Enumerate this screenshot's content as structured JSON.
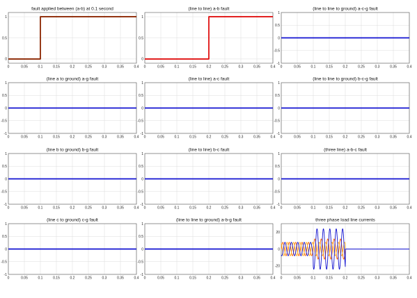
{
  "chart_data": [
    {
      "type": "line",
      "title": "fault applied between (a-b)  at 0.1 second",
      "xlim": [
        0,
        0.4
      ],
      "ylim": [
        -0.1,
        1.1
      ],
      "xticks": [
        "0",
        "0.05",
        "0.1",
        "0.15",
        "0.2",
        "0.25",
        "0.3",
        "0.35",
        "0.4"
      ],
      "yticks": [
        "0",
        "0.5",
        "1"
      ],
      "grid": true,
      "series": [
        {
          "color": "#8B2500",
          "x": [
            0,
            0.1,
            0.1,
            0.4
          ],
          "y": [
            0,
            0,
            1,
            1
          ]
        }
      ]
    },
    {
      "type": "line",
      "title": "(line to line) a-b fault",
      "xlim": [
        0,
        0.4
      ],
      "ylim": [
        -0.1,
        1.1
      ],
      "xticks": [
        "0",
        "0.05",
        "0.1",
        "0.15",
        "0.2",
        "0.25",
        "0.3",
        "0.35",
        "0.4"
      ],
      "yticks": [
        "0",
        "0.5",
        "1"
      ],
      "grid": true,
      "series": [
        {
          "color": "#e01010",
          "x": [
            0,
            0.2,
            0.2,
            0.4
          ],
          "y": [
            0,
            0,
            1,
            1
          ]
        }
      ]
    },
    {
      "type": "line",
      "title": "(line to line to ground) a-c-g fault",
      "xlim": [
        0,
        0.4
      ],
      "ylim": [
        -1,
        1
      ],
      "xticks": [
        "0",
        "0.05",
        "0.1",
        "0.15",
        "0.2",
        "0.25",
        "0.3",
        "0.35",
        "0.4"
      ],
      "yticks": [
        "-1",
        "-0.5",
        "0",
        "0.5",
        "1"
      ],
      "grid": true,
      "series": [
        {
          "color": "#1010d0",
          "x": [
            0,
            0.4
          ],
          "y": [
            0,
            0
          ]
        }
      ]
    },
    {
      "type": "line",
      "title": "(line a to ground) a-g fault",
      "xlim": [
        0,
        0.4
      ],
      "ylim": [
        -1,
        1
      ],
      "xticks": [
        "0",
        "0.05",
        "0.1",
        "0.15",
        "0.2",
        "0.25",
        "0.3",
        "0.35",
        "0.4"
      ],
      "yticks": [
        "-1",
        "-0.5",
        "0",
        "0.5",
        "1"
      ],
      "grid": true,
      "series": [
        {
          "color": "#1010d0",
          "x": [
            0,
            0.4
          ],
          "y": [
            0,
            0
          ]
        }
      ]
    },
    {
      "type": "line",
      "title": "(line to line) a-c  fault",
      "xlim": [
        0,
        0.4
      ],
      "ylim": [
        -1,
        1
      ],
      "xticks": [
        "0",
        "0.05",
        "0.1",
        "0.15",
        "0.2",
        "0.25",
        "0.3",
        "0.35",
        "0.4"
      ],
      "yticks": [
        "-1",
        "-0.5",
        "0",
        "0.5",
        "1"
      ],
      "grid": true,
      "series": [
        {
          "color": "#1010d0",
          "x": [
            0,
            0.4
          ],
          "y": [
            0,
            0
          ]
        }
      ]
    },
    {
      "type": "line",
      "title": "(line to line to ground) b-c-g fault",
      "xlim": [
        0,
        0.4
      ],
      "ylim": [
        -1,
        1
      ],
      "xticks": [
        "0",
        "0.05",
        "0.1",
        "0.15",
        "0.2",
        "0.25",
        "0.3",
        "0.35",
        "0.4"
      ],
      "yticks": [
        "-1",
        "-0.5",
        "0",
        "0.5",
        "1"
      ],
      "grid": true,
      "series": [
        {
          "color": "#1010d0",
          "x": [
            0,
            0.4
          ],
          "y": [
            0,
            0
          ]
        }
      ]
    },
    {
      "type": "line",
      "title": "(line b to ground) b-g fault",
      "xlim": [
        0,
        0.4
      ],
      "ylim": [
        -1,
        1
      ],
      "xticks": [
        "0",
        "0.05",
        "0.1",
        "0.15",
        "0.2",
        "0.25",
        "0.3",
        "0.35",
        "0.4"
      ],
      "yticks": [
        "-1",
        "-0.5",
        "0",
        "0.5",
        "1"
      ],
      "grid": true,
      "series": [
        {
          "color": "#1010d0",
          "x": [
            0,
            0.4
          ],
          "y": [
            0,
            0
          ]
        }
      ]
    },
    {
      "type": "line",
      "title": "(line to line) b-c fault",
      "xlim": [
        0,
        0.4
      ],
      "ylim": [
        -1,
        1
      ],
      "xticks": [
        "0",
        "0.05",
        "0.1",
        "0.15",
        "0.2",
        "0.25",
        "0.3",
        "0.35",
        "0.4"
      ],
      "yticks": [
        "-1",
        "-0.5",
        "0",
        "0.5",
        "1"
      ],
      "grid": true,
      "series": [
        {
          "color": "#1010d0",
          "x": [
            0,
            0.4
          ],
          "y": [
            0,
            0
          ]
        }
      ]
    },
    {
      "type": "line",
      "title": "(three line) a-b-c  fault",
      "xlim": [
        0,
        0.4
      ],
      "ylim": [
        -1,
        1
      ],
      "xticks": [
        "0",
        "0.05",
        "0.1",
        "0.15",
        "0.2",
        "0.25",
        "0.3",
        "0.35",
        "0.4"
      ],
      "yticks": [
        "-1",
        "-0.5",
        "0",
        "0.5",
        "1"
      ],
      "grid": true,
      "series": [
        {
          "color": "#1010d0",
          "x": [
            0,
            0.4
          ],
          "y": [
            0,
            0
          ]
        }
      ]
    },
    {
      "type": "line",
      "title": "(line c to ground) c-g fault",
      "xlim": [
        0,
        0.4
      ],
      "ylim": [
        -1,
        1
      ],
      "xticks": [
        "0",
        "0.05",
        "0.1",
        "0.15",
        "0.2",
        "0.25",
        "0.3",
        "0.35",
        "0.4"
      ],
      "yticks": [
        "-1",
        "-0.5",
        "0",
        "0.5",
        "1"
      ],
      "grid": true,
      "series": [
        {
          "color": "#1010d0",
          "x": [
            0,
            0.4
          ],
          "y": [
            0,
            0
          ]
        }
      ]
    },
    {
      "type": "line",
      "title": "(line to line to ground) a-b-g fault",
      "xlim": [
        0,
        0.4
      ],
      "ylim": [
        -1,
        1
      ],
      "xticks": [
        "0",
        "0.05",
        "0.1",
        "0.15",
        "0.2",
        "0.25",
        "0.3",
        "0.35",
        "0.4"
      ],
      "yticks": [
        "-1",
        "-0.5",
        "0",
        "0.5",
        "1"
      ],
      "grid": true,
      "series": [
        {
          "color": "#1010d0",
          "x": [
            0,
            0.4
          ],
          "y": [
            0,
            0
          ]
        }
      ]
    },
    {
      "type": "line",
      "title": "three phase load line currents",
      "xlim": [
        0,
        0.4
      ],
      "ylim": [
        -30,
        30
      ],
      "xticks": [
        "0",
        "0.05",
        "0.1",
        "0.15",
        "0.2",
        "0.25",
        "0.3",
        "0.35",
        "0.4"
      ],
      "yticks": [
        "-20",
        "0",
        "20"
      ],
      "grid": true,
      "series": [
        {
          "color": "#ff6600",
          "wave": {
            "t0": 0,
            "t1": 0.2,
            "freq": 50,
            "phase_deg": 0,
            "amp_before": 8,
            "amp_after": 12,
            "t_change": 0.1,
            "zero_after_t1": true
          }
        },
        {
          "color": "#ffb020",
          "wave": {
            "t0": 0,
            "t1": 0.2,
            "freq": 50,
            "phase_deg": 120,
            "amp_before": 8,
            "amp_after": 8,
            "t_change": 0.1,
            "zero_after_t1": true
          }
        },
        {
          "color": "#1010d0",
          "wave": {
            "t0": 0,
            "t1": 0.2,
            "freq": 50,
            "phase_deg": 240,
            "amp_before": 8,
            "amp_after": 24,
            "t_change": 0.1,
            "zero_after_t1": true
          }
        }
      ]
    }
  ]
}
